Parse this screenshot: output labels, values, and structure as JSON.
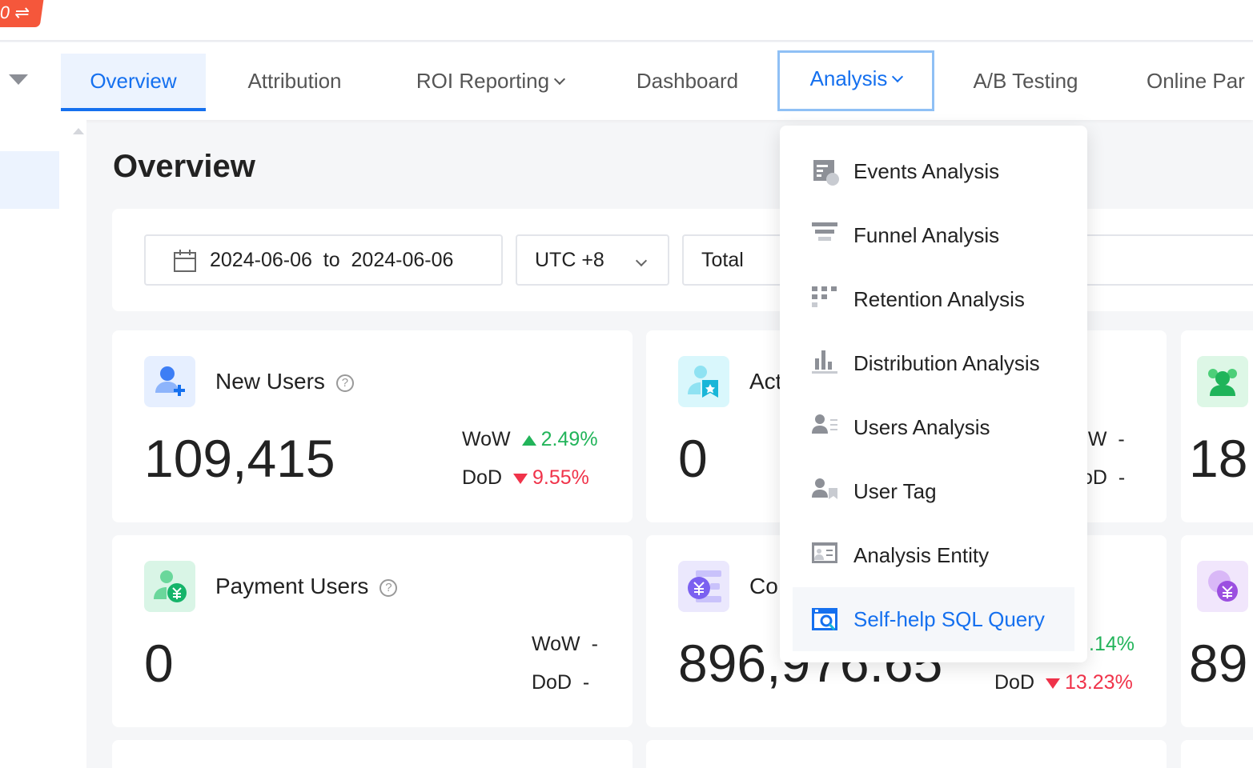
{
  "logo": {
    "text": "0 ⇌"
  },
  "nav": {
    "tabs": [
      {
        "label": "Overview",
        "active": true
      },
      {
        "label": "Attribution"
      },
      {
        "label": "ROI Reporting",
        "dropdown": true
      },
      {
        "label": "Dashboard"
      },
      {
        "label": "Analysis",
        "dropdown": true,
        "open": true
      },
      {
        "label": "A/B Testing"
      },
      {
        "label": "Online Par"
      }
    ]
  },
  "page": {
    "title": "Overview"
  },
  "filters": {
    "date_range": "2024-06-06  to  2024-06-06",
    "timezone": "UTC +8",
    "scope": "Total"
  },
  "cards": [
    {
      "title": "New Users",
      "value": "109,415",
      "wow_label": "WoW",
      "wow": "2.49%",
      "wow_dir": "up",
      "dod_label": "DoD",
      "dod": "9.55%",
      "dod_dir": "down"
    },
    {
      "title": "Act",
      "value": "0",
      "wow_label": "oW",
      "wow": "-",
      "dod_label": "oD",
      "dod": "-"
    },
    {
      "value": "18"
    },
    {
      "title": "Payment Users",
      "value": "0",
      "wow_label": "WoW",
      "wow": "-",
      "dod_label": "DoD",
      "dod": "-"
    },
    {
      "title": "Co",
      "value": "896,976.65",
      "wow": ".14%",
      "wow_dir": "up",
      "dod_label": "DoD",
      "dod": "13.23%",
      "dod_dir": "down"
    },
    {
      "value": "89"
    }
  ],
  "analysis_menu": {
    "items": [
      {
        "label": "Events Analysis",
        "icon": "events-analysis-icon"
      },
      {
        "label": "Funnel Analysis",
        "icon": "funnel-icon"
      },
      {
        "label": "Retention Analysis",
        "icon": "retention-icon"
      },
      {
        "label": "Distribution Analysis",
        "icon": "bar-chart-icon"
      },
      {
        "label": "Users Analysis",
        "icon": "user-list-icon"
      },
      {
        "label": "User Tag",
        "icon": "user-tag-icon"
      },
      {
        "label": "Analysis Entity",
        "icon": "entity-card-icon"
      },
      {
        "label": "Self-help SQL Query",
        "icon": "sql-query-icon",
        "highlighted": true
      }
    ]
  },
  "colors": {
    "accent": "#1570ef",
    "up": "#22b45a",
    "down": "#f0334a",
    "logo": "#f5573b"
  }
}
